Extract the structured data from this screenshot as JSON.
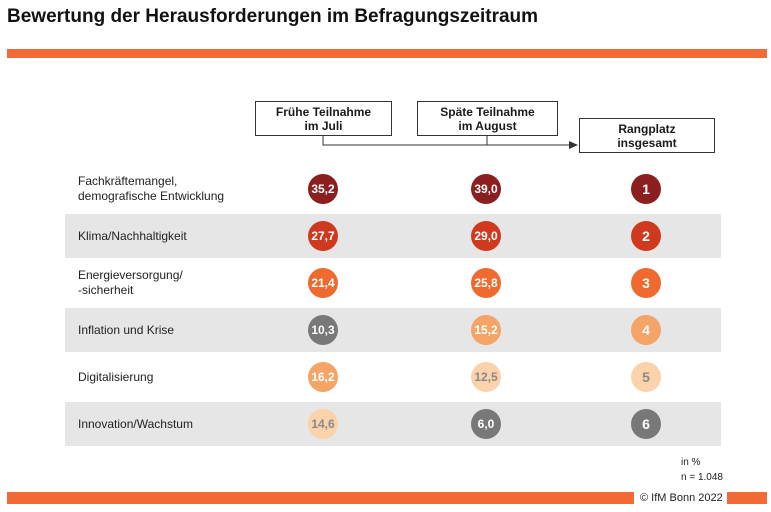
{
  "title": "Bewertung der Herausforderungen im Befragungszeitraum",
  "colors": {
    "accent": "#f26a36",
    "dark_red": "#8b1e1e",
    "red": "#cf3a1f",
    "orange": "#ee6a2f",
    "light_orange": "#f4a466",
    "pale_orange": "#fbd2aa",
    "gray": "#787878"
  },
  "headers": {
    "early": [
      "Frühe Teilnahme",
      "im Juli"
    ],
    "late": [
      "Späte Teilnahme",
      "im August"
    ],
    "rank": [
      "Rangplatz",
      "insgesamt"
    ]
  },
  "chart_data": {
    "type": "table",
    "title": "Bewertung der Herausforderungen im Befragungszeitraum",
    "columns": [
      "Frühe Teilnahme im Juli",
      "Späte Teilnahme im August",
      "Rangplatz insgesamt"
    ],
    "unit": "in %",
    "rows": [
      {
        "label": "Fachkräftemangel,\ndemografische Entwicklung",
        "early": "35,2",
        "late": "39,0",
        "rank": "1",
        "early_color": "#8b1e1e",
        "late_color": "#8b1e1e",
        "rank_color": "#8b1e1e"
      },
      {
        "label": "Klima/Nachhaltigkeit",
        "early": "27,7",
        "late": "29,0",
        "rank": "2",
        "early_color": "#cf3a1f",
        "late_color": "#cf3a1f",
        "rank_color": "#cf3a1f"
      },
      {
        "label": "Energieversorgung/\n-sicherheit",
        "early": "21,4",
        "late": "25,8",
        "rank": "3",
        "early_color": "#ee6a2f",
        "late_color": "#ee6a2f",
        "rank_color": "#ee6a2f"
      },
      {
        "label": "Inflation und Krise",
        "early": "10,3",
        "late": "15,2",
        "rank": "4",
        "early_color": "#787878",
        "late_color": "#f4a466",
        "rank_color": "#f4a466"
      },
      {
        "label": "Digitalisierung",
        "early": "16,2",
        "late": "12,5",
        "rank": "5",
        "early_color": "#f4a466",
        "late_color": "#fbd2aa",
        "rank_color": "#fbd2aa"
      },
      {
        "label": "Innovation/Wachstum",
        "early": "14,6",
        "late": "6,0",
        "rank": "6",
        "early_color": "#fbd2aa",
        "late_color": "#787878",
        "rank_color": "#787878"
      }
    ]
  },
  "notes": {
    "unit": "in %",
    "n": "n = 1.048"
  },
  "footer": {
    "copyright": "© IfM Bonn 2022"
  }
}
